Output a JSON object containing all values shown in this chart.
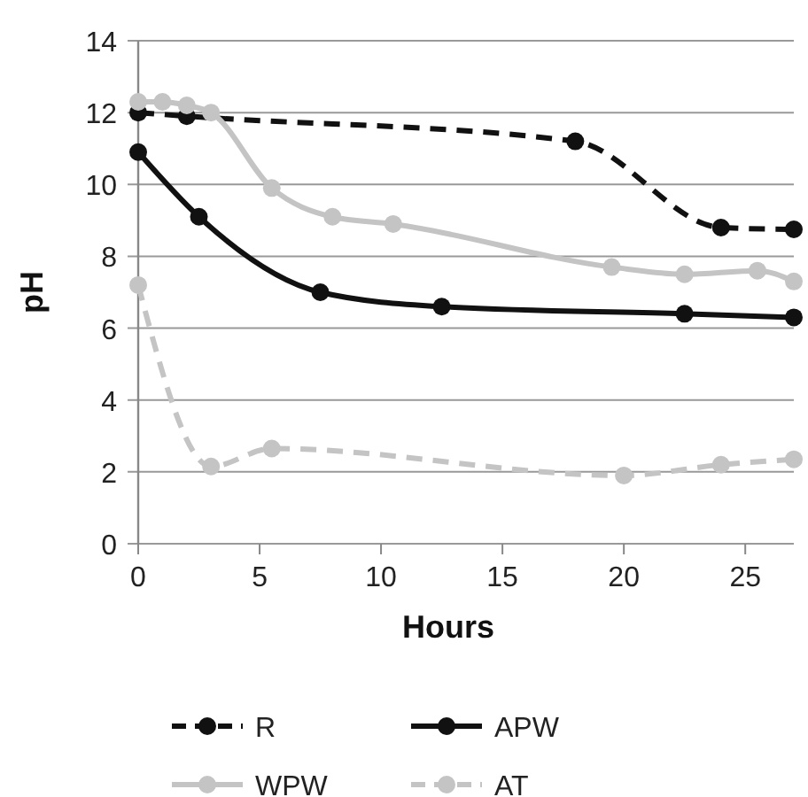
{
  "chart_data": {
    "type": "line",
    "xlabel": "Hours",
    "ylabel": "pH",
    "xlim": [
      0,
      27
    ],
    "xticks": [
      0,
      5,
      10,
      15,
      20,
      25
    ],
    "ylim": [
      0,
      14
    ],
    "yticks": [
      0,
      2,
      4,
      6,
      8,
      10,
      12,
      14
    ],
    "grid": "y",
    "legend": "bottom",
    "marker": "circle",
    "series": [
      {
        "name": "R",
        "color": "#111111",
        "line_style": "dashed",
        "x": [
          0,
          2,
          18,
          24,
          27
        ],
        "values": [
          12.0,
          11.9,
          11.2,
          8.8,
          8.75
        ]
      },
      {
        "name": "APW",
        "color": "#111111",
        "line_style": "solid",
        "x": [
          0,
          2.5,
          7.5,
          12.5,
          22.5,
          27
        ],
        "values": [
          10.9,
          9.1,
          7.0,
          6.6,
          6.4,
          6.3
        ]
      },
      {
        "name": "WPW",
        "color": "#c4c4c4",
        "line_style": "solid",
        "x": [
          0,
          1,
          2,
          3,
          5.5,
          8,
          10.5,
          19.5,
          22.5,
          25.5,
          27
        ],
        "values": [
          12.3,
          12.3,
          12.2,
          12.0,
          9.9,
          9.1,
          8.9,
          7.7,
          7.5,
          7.6,
          7.3
        ]
      },
      {
        "name": "AT",
        "color": "#c4c4c4",
        "line_style": "dashed",
        "x": [
          0,
          3,
          5.5,
          20,
          24,
          27
        ],
        "values": [
          7.2,
          2.15,
          2.65,
          1.9,
          2.2,
          2.35
        ]
      }
    ]
  }
}
